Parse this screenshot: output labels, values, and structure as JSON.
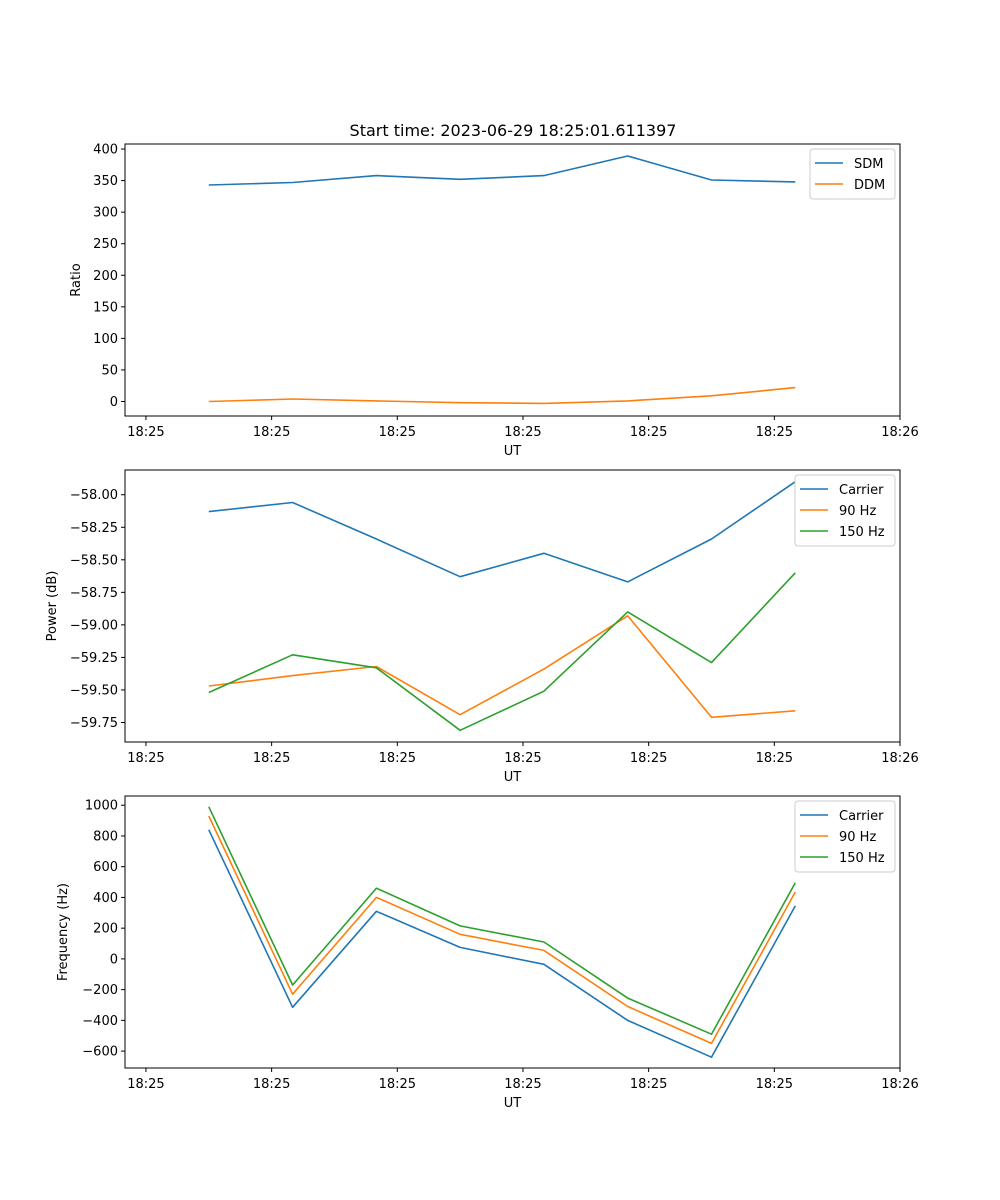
{
  "title": "Start time: 2023-06-29 18:25:01.611397",
  "colors": {
    "blue": "#1f77b4",
    "orange": "#ff7f0e",
    "green": "#2ca02c"
  },
  "chart_data": [
    {
      "type": "line",
      "xlabel": "UT",
      "ylabel": "Ratio",
      "xlim": [
        0,
        9.25
      ],
      "ylim": [
        -23,
        408
      ],
      "x_tick_positions": [
        0.25,
        1.75,
        3.25,
        4.75,
        6.25,
        7.75,
        9.25
      ],
      "x_ticks": [
        "18:25",
        "18:25",
        "18:25",
        "18:25",
        "18:25",
        "18:25",
        "18:26"
      ],
      "yticks": [
        400,
        350,
        300,
        250,
        200,
        150,
        100,
        50,
        0
      ],
      "y_tick_labels": [
        "400",
        "350",
        "300",
        "250",
        "200",
        "150",
        "100",
        "50",
        "0"
      ],
      "x": [
        1,
        2,
        3,
        4,
        5,
        6,
        7,
        8
      ],
      "legend": "top-right",
      "series": [
        {
          "name": "SDM",
          "color": "#1f77b4",
          "values": [
            343,
            347,
            358,
            352,
            358,
            389,
            351,
            348
          ]
        },
        {
          "name": "DDM",
          "color": "#ff7f0e",
          "values": [
            0,
            4,
            1,
            -2,
            -3,
            1,
            9,
            22
          ]
        }
      ]
    },
    {
      "type": "line",
      "xlabel": "UT",
      "ylabel": "Power (dB)",
      "xlim": [
        0,
        9.25
      ],
      "ylim": [
        -59.9,
        -57.81
      ],
      "x_tick_positions": [
        0.25,
        1.75,
        3.25,
        4.75,
        6.25,
        7.75,
        9.25
      ],
      "x_ticks": [
        "18:25",
        "18:25",
        "18:25",
        "18:25",
        "18:25",
        "18:25",
        "18:26"
      ],
      "yticks": [
        -58.0,
        -58.25,
        -58.5,
        -58.75,
        -59.0,
        -59.25,
        -59.5,
        -59.75
      ],
      "y_tick_labels": [
        "−58.00",
        "−58.25",
        "−58.50",
        "−58.75",
        "−59.00",
        "−59.25",
        "−59.50",
        "−59.75"
      ],
      "x": [
        1,
        2,
        3,
        4,
        5,
        6,
        7,
        8
      ],
      "legend": "top-right",
      "series": [
        {
          "name": "Carrier",
          "color": "#1f77b4",
          "values": [
            -58.13,
            -58.06,
            -58.34,
            -58.63,
            -58.45,
            -58.67,
            -58.34,
            -57.9
          ]
        },
        {
          "name": "90 Hz",
          "color": "#ff7f0e",
          "values": [
            -59.47,
            -59.39,
            -59.32,
            -59.69,
            -59.34,
            -58.93,
            -59.71,
            -59.66
          ]
        },
        {
          "name": "150 Hz",
          "color": "#2ca02c",
          "values": [
            -59.52,
            -59.23,
            -59.33,
            -59.81,
            -59.51,
            -58.9,
            -59.29,
            -58.6
          ]
        }
      ]
    },
    {
      "type": "line",
      "xlabel": "UT",
      "ylabel": "Frequency (Hz)",
      "xlim": [
        0,
        9.25
      ],
      "ylim": [
        -710,
        1060
      ],
      "x_tick_positions": [
        0.25,
        1.75,
        3.25,
        4.75,
        6.25,
        7.75,
        9.25
      ],
      "x_ticks": [
        "18:25",
        "18:25",
        "18:25",
        "18:25",
        "18:25",
        "18:25",
        "18:26"
      ],
      "yticks": [
        1000,
        800,
        600,
        400,
        200,
        0,
        -200,
        -400,
        -600
      ],
      "y_tick_labels": [
        "1000",
        "800",
        "600",
        "400",
        "200",
        "0",
        "−200",
        "−400",
        "−600"
      ],
      "x": [
        1,
        2,
        3,
        4,
        5,
        6,
        7,
        8
      ],
      "legend": "top-right",
      "series": [
        {
          "name": "Carrier",
          "color": "#1f77b4",
          "values": [
            840,
            -315,
            310,
            75,
            -35,
            -400,
            -640,
            345
          ]
        },
        {
          "name": "90 Hz",
          "color": "#ff7f0e",
          "values": [
            930,
            -230,
            400,
            160,
            55,
            -310,
            -550,
            435
          ]
        },
        {
          "name": "150 Hz",
          "color": "#2ca02c",
          "values": [
            990,
            -170,
            460,
            215,
            110,
            -255,
            -490,
            495
          ]
        }
      ]
    }
  ]
}
